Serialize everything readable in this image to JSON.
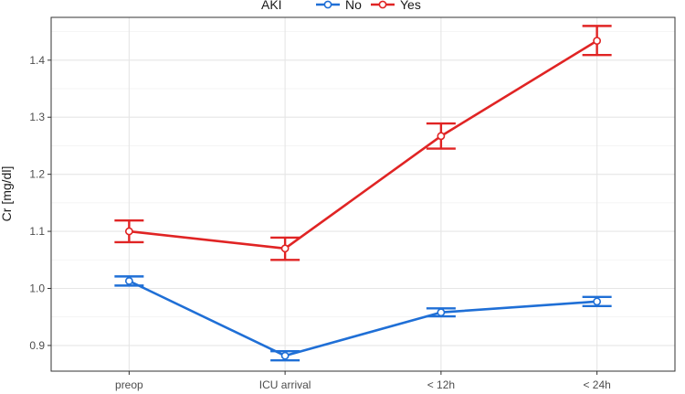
{
  "chart_data": {
    "type": "line",
    "title": "",
    "xlabel": "",
    "ylabel": "Cr [mg/dl]",
    "categories": [
      "preop",
      "ICU arrival",
      "< 12h",
      "< 24h"
    ],
    "ylim": [
      0.855,
      1.475
    ],
    "yticks": [
      0.9,
      1.0,
      1.1,
      1.2,
      1.3,
      1.4
    ],
    "ytick_labels": [
      "0.9",
      "1.0",
      "1.1",
      "1.2",
      "1.3",
      "1.4"
    ],
    "grid": true,
    "legend": {
      "title": "AKI",
      "placement": "top"
    },
    "series": [
      {
        "name": "No",
        "color": "#1f6fd6",
        "values": [
          1.013,
          0.882,
          0.958,
          0.977
        ],
        "lower": [
          1.005,
          0.874,
          0.951,
          0.969
        ],
        "upper": [
          1.021,
          0.89,
          0.965,
          0.985
        ]
      },
      {
        "name": "Yes",
        "color": "#e02424",
        "values": [
          1.1,
          1.07,
          1.267,
          1.434
        ],
        "lower": [
          1.081,
          1.05,
          1.245,
          1.409
        ],
        "upper": [
          1.119,
          1.089,
          1.289,
          1.46
        ]
      }
    ]
  }
}
